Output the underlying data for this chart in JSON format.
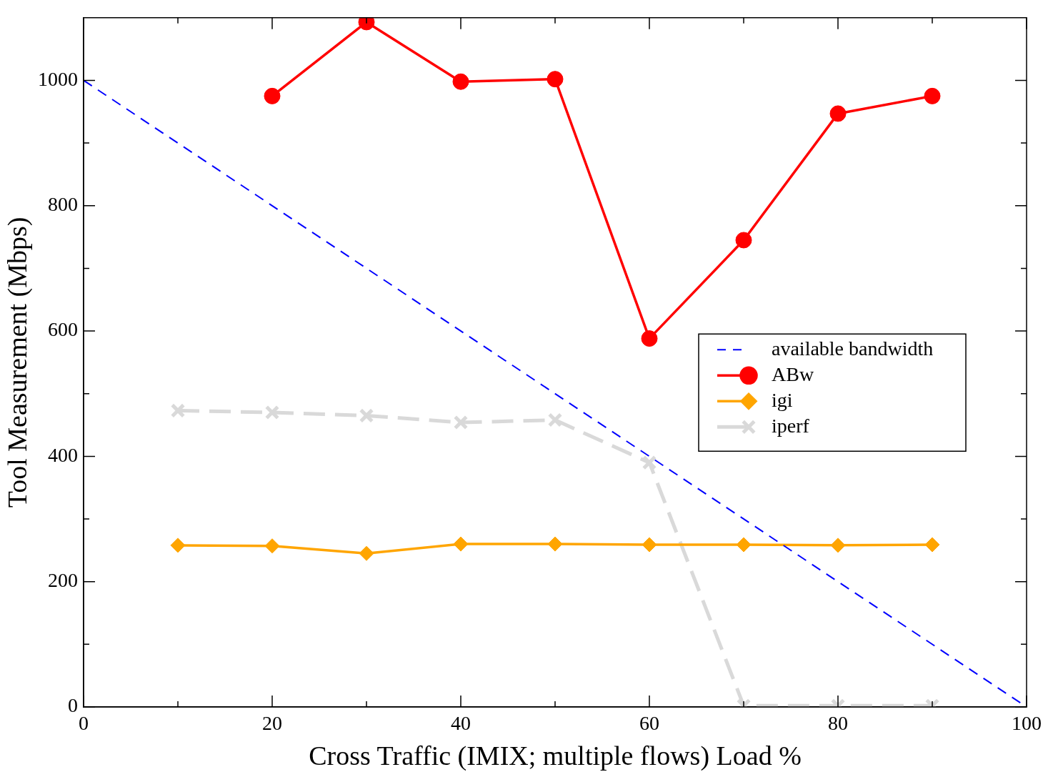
{
  "chart_data": {
    "type": "line",
    "xlabel": "Cross Traffic (IMIX; multiple flows) Load %",
    "ylabel": "Tool Measurement (Mbps)",
    "x": [
      10,
      20,
      30,
      40,
      50,
      60,
      70,
      80,
      90
    ],
    "xlim": [
      0,
      100
    ],
    "xticks": [
      0,
      {
        "value": 10,
        "label": null
      },
      20,
      {
        "value": 30,
        "label": null
      },
      40,
      {
        "value": 50,
        "label": null
      },
      60,
      {
        "value": 70,
        "label": null
      },
      80,
      {
        "value": 90,
        "label": null
      },
      100
    ],
    "ylim": [
      0,
      1100
    ],
    "yticks": [
      0,
      {
        "value": 100,
        "label": null
      },
      200,
      {
        "value": 300,
        "label": null
      },
      400,
      {
        "value": 500,
        "label": null
      },
      600,
      {
        "value": 700,
        "label": null
      },
      800,
      {
        "value": 900,
        "label": null
      },
      1000
    ],
    "grid": false,
    "legend": "right",
    "series": [
      {
        "name": "available bandwidth",
        "color": "#0000ff",
        "x": [
          0,
          100
        ],
        "values": [
          1000,
          0
        ],
        "marker": "none",
        "line_style": "dashed"
      },
      {
        "name": "ABw",
        "color": "#ff0000",
        "values": [
          null,
          975,
          1093,
          998,
          1002,
          588,
          745,
          947,
          975
        ],
        "marker": "circle",
        "line_style": "solid"
      },
      {
        "name": "igi",
        "color": "#ffa500",
        "values": [
          258,
          257,
          245,
          260,
          260,
          259,
          259,
          258,
          259
        ],
        "marker": "diamond",
        "line_style": "solid"
      },
      {
        "name": "iperf",
        "color": "#d9d9d9",
        "values": [
          473,
          470,
          465,
          454,
          458,
          390,
          2,
          2,
          2
        ],
        "marker": "cross",
        "line_style": "dashed"
      }
    ]
  }
}
